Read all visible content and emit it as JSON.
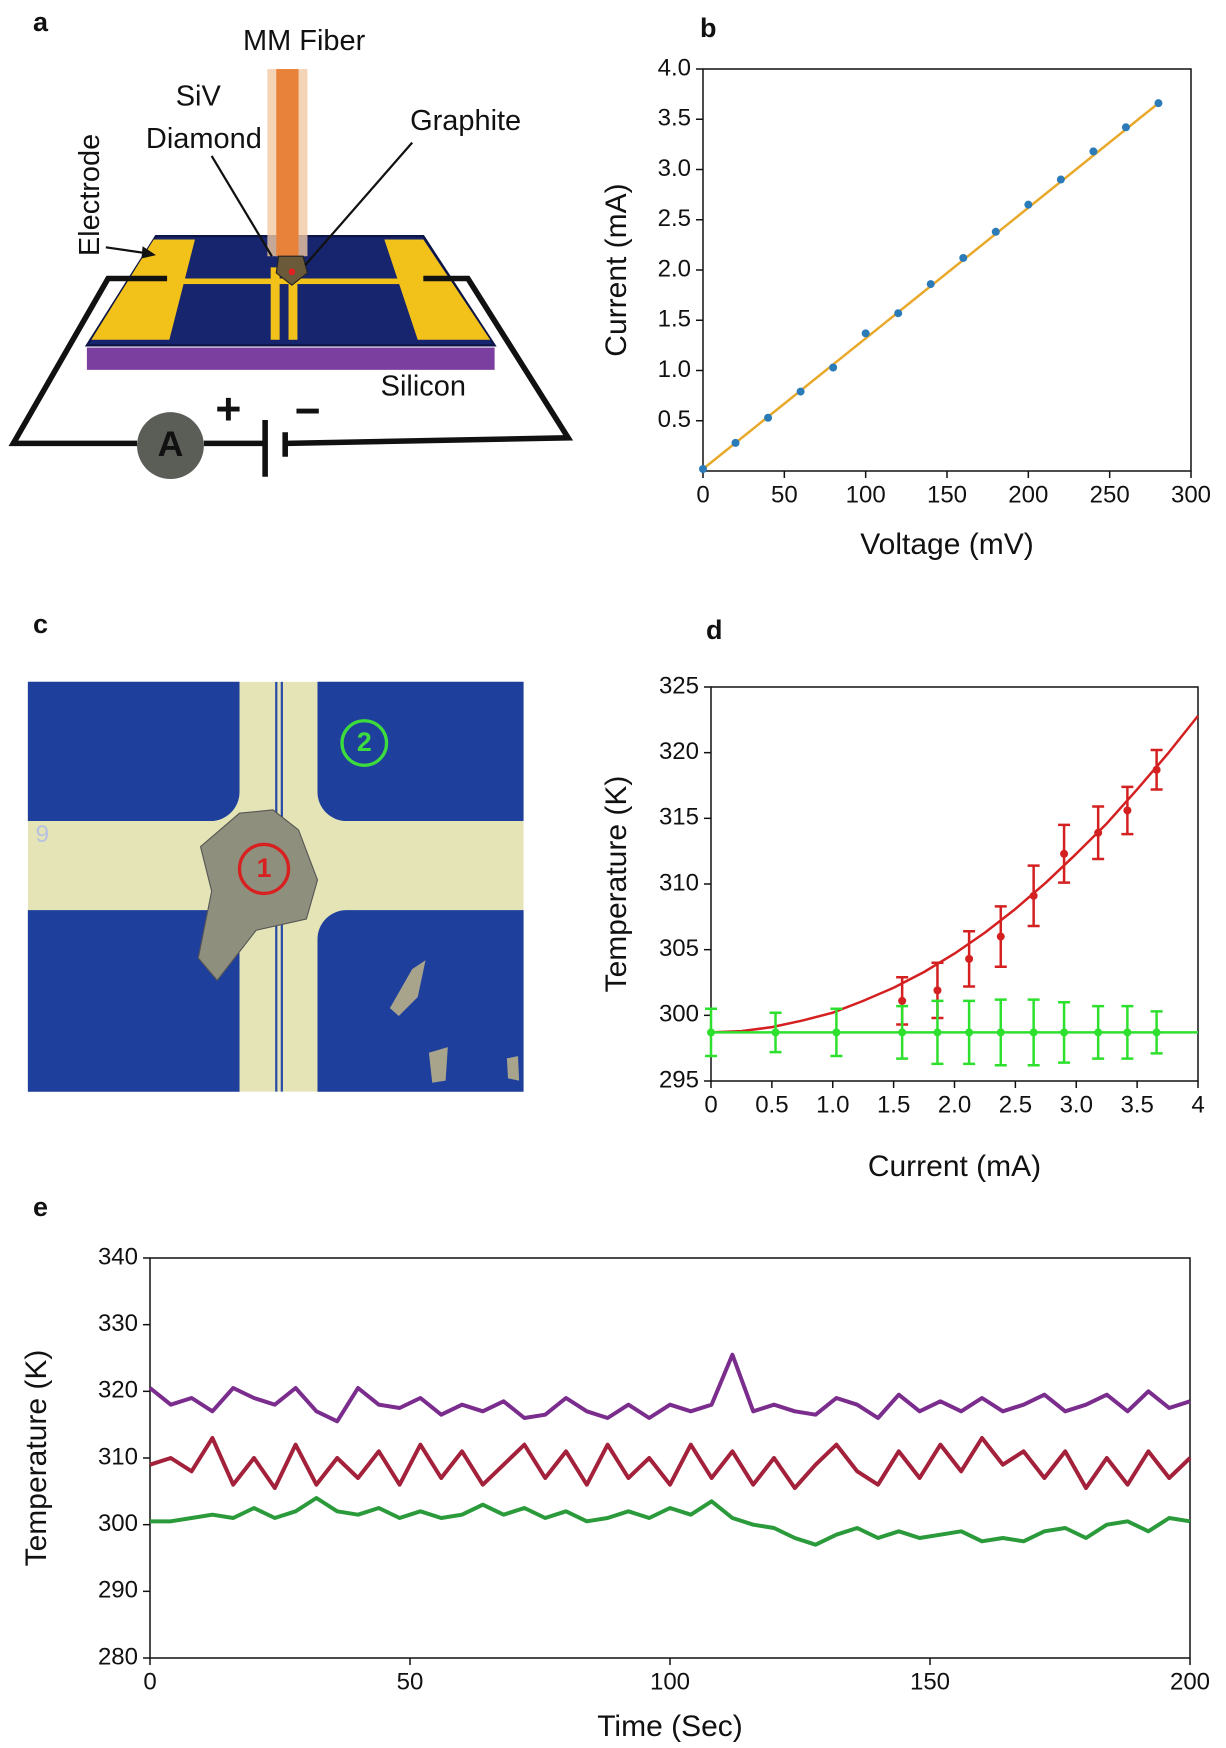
{
  "panel_labels": [
    "a",
    "b",
    "c",
    "d",
    "e"
  ],
  "diagram": {
    "fiber": "MM Fiber",
    "siv": "SiV",
    "diamond": "Diamond",
    "graphite": "Graphite",
    "electrode": "Electrode",
    "silicon": "Silicon",
    "ammeter": "A",
    "plus": "+",
    "minus": "−"
  },
  "micrograph": {
    "marker_1": "1",
    "marker_2": "2",
    "chip_number": "9"
  },
  "chart_data": [
    {
      "type": "line",
      "xlabel": "Voltage (mV)",
      "ylabel": "Current (mA)",
      "xlim": [
        0,
        300
      ],
      "xticks": [
        0,
        50,
        100,
        150,
        200,
        250,
        300
      ],
      "ylim": [
        0,
        4
      ],
      "yticks": [
        0.5,
        {
          "value": 1,
          "label": "1.0"
        },
        1.5,
        {
          "value": 2,
          "label": "2.0"
        },
        2.5,
        {
          "value": 3,
          "label": "3.0"
        },
        3.5,
        {
          "value": 4,
          "label": "4.0"
        }
      ],
      "series": [
        {
          "style": "line",
          "color": "#e8a92b",
          "x": [
            0,
            280
          ],
          "values": [
            0.02,
            3.66
          ]
        },
        {
          "style": "points",
          "color": "#2b7bb9",
          "x": [
            0,
            20,
            40,
            60,
            80,
            100,
            120,
            140,
            160,
            180,
            200,
            220,
            240,
            260,
            280
          ],
          "values": [
            0.02,
            0.28,
            0.53,
            0.79,
            1.03,
            1.37,
            1.57,
            1.86,
            2.12,
            2.38,
            2.65,
            2.9,
            3.18,
            3.42,
            3.66
          ]
        }
      ]
    },
    {
      "type": "line",
      "xlabel": "Current (mA)",
      "ylabel": "Temperature (K)",
      "xlim": [
        0,
        4
      ],
      "xticks": [
        0,
        0.5,
        {
          "value": 1,
          "label": "1.0"
        },
        1.5,
        {
          "value": 2,
          "label": "2.0"
        },
        2.5,
        {
          "value": 3,
          "label": "3.0"
        },
        3.5,
        4
      ],
      "ylim": [
        295,
        325
      ],
      "yticks": [
        295,
        300,
        305,
        310,
        315,
        320,
        325
      ],
      "series": [
        {
          "style": "line",
          "color": "#d42020",
          "x": [
            0,
            0.25,
            0.5,
            0.75,
            1,
            1.25,
            1.5,
            1.75,
            2,
            2.25,
            2.5,
            2.75,
            3,
            3.25,
            3.5,
            3.75,
            4
          ],
          "values": [
            298.7,
            298.8,
            299.1,
            299.6,
            300.2,
            301.1,
            302.1,
            303.3,
            304.7,
            306.3,
            308.1,
            310.1,
            312.3,
            314.6,
            317.2,
            319.9,
            322.8
          ]
        },
        {
          "style": "points",
          "color": "#d42020",
          "x": [
            1.57,
            1.86,
            2.12,
            2.38,
            2.65,
            2.9,
            3.18,
            3.42,
            3.66
          ],
          "values": [
            301.1,
            301.9,
            304.3,
            306.0,
            309.1,
            312.3,
            313.9,
            315.6,
            318.7
          ],
          "errors": [
            1.8,
            2.1,
            2.1,
            2.3,
            2.3,
            2.2,
            2.0,
            1.8,
            1.5
          ]
        },
        {
          "style": "line",
          "color": "#2ee02e",
          "x": [
            0,
            4
          ],
          "values": [
            298.7,
            298.7
          ]
        },
        {
          "style": "points",
          "color": "#2ee02e",
          "x": [
            0,
            0.53,
            1.03,
            1.57,
            1.86,
            2.12,
            2.38,
            2.65,
            2.9,
            3.18,
            3.42,
            3.66
          ],
          "values": [
            298.7,
            298.7,
            298.7,
            298.7,
            298.7,
            298.7,
            298.7,
            298.7,
            298.7,
            298.7,
            298.7,
            298.7
          ],
          "errors": [
            1.8,
            1.5,
            1.8,
            2.0,
            2.4,
            2.4,
            2.5,
            2.5,
            2.3,
            2.0,
            2.0,
            1.6
          ]
        }
      ]
    },
    {
      "type": "line",
      "xlabel": "Time (Sec)",
      "ylabel": "Temperature (K)",
      "xlim": [
        0,
        200
      ],
      "xticks": [
        0,
        50,
        100,
        150,
        200
      ],
      "ylim": [
        280,
        340
      ],
      "yticks": [
        280,
        290,
        300,
        310,
        320,
        330,
        340
      ],
      "x": [
        0,
        4,
        8,
        12,
        16,
        20,
        24,
        28,
        32,
        36,
        40,
        44,
        48,
        52,
        56,
        60,
        64,
        68,
        72,
        76,
        80,
        84,
        88,
        92,
        96,
        100,
        104,
        108,
        112,
        116,
        120,
        124,
        128,
        132,
        136,
        140,
        144,
        148,
        152,
        156,
        160,
        164,
        168,
        172,
        176,
        180,
        184,
        188,
        192,
        196,
        200
      ],
      "series": [
        {
          "style": "line",
          "color": "#7b2d8e",
          "values": [
            320.5,
            318,
            319,
            317,
            320.5,
            319,
            318,
            320.5,
            317,
            315.5,
            320.5,
            318,
            317.5,
            319,
            316.5,
            318,
            317,
            318.5,
            316,
            316.5,
            319,
            317,
            316,
            318,
            316,
            318,
            317,
            318,
            325.5,
            317,
            318,
            317,
            316.5,
            319,
            318,
            316,
            319.5,
            317,
            318.5,
            317,
            319,
            317,
            318,
            319.5,
            317,
            318,
            319.5,
            317,
            320,
            317.5,
            318.5
          ]
        },
        {
          "style": "line",
          "color": "#a3213a",
          "values": [
            309,
            310,
            308,
            313,
            306,
            310,
            305.5,
            312,
            306,
            310,
            307,
            311,
            306,
            312,
            307,
            311,
            306,
            309,
            312,
            307,
            311,
            306,
            312,
            307,
            310,
            306,
            312,
            307,
            311,
            306,
            310,
            305.5,
            309,
            312,
            308,
            306,
            311,
            307,
            312,
            308,
            313,
            309,
            311,
            307,
            311,
            305.5,
            310,
            306,
            311,
            307,
            310
          ]
        },
        {
          "style": "line",
          "color": "#2a9a3a",
          "values": [
            300.5,
            300.5,
            301,
            301.5,
            301,
            302.5,
            301,
            302,
            304,
            302,
            301.5,
            302.5,
            301,
            302,
            301,
            301.5,
            303,
            301.5,
            302.5,
            301,
            302,
            300.5,
            301,
            302,
            301,
            302.5,
            301.5,
            303.5,
            301,
            300,
            299.5,
            298,
            297,
            298.5,
            299.5,
            298,
            299,
            298,
            298.5,
            299,
            297.5,
            298,
            297.5,
            299,
            299.5,
            298,
            300,
            300.5,
            299,
            301,
            300.5
          ]
        }
      ]
    }
  ]
}
